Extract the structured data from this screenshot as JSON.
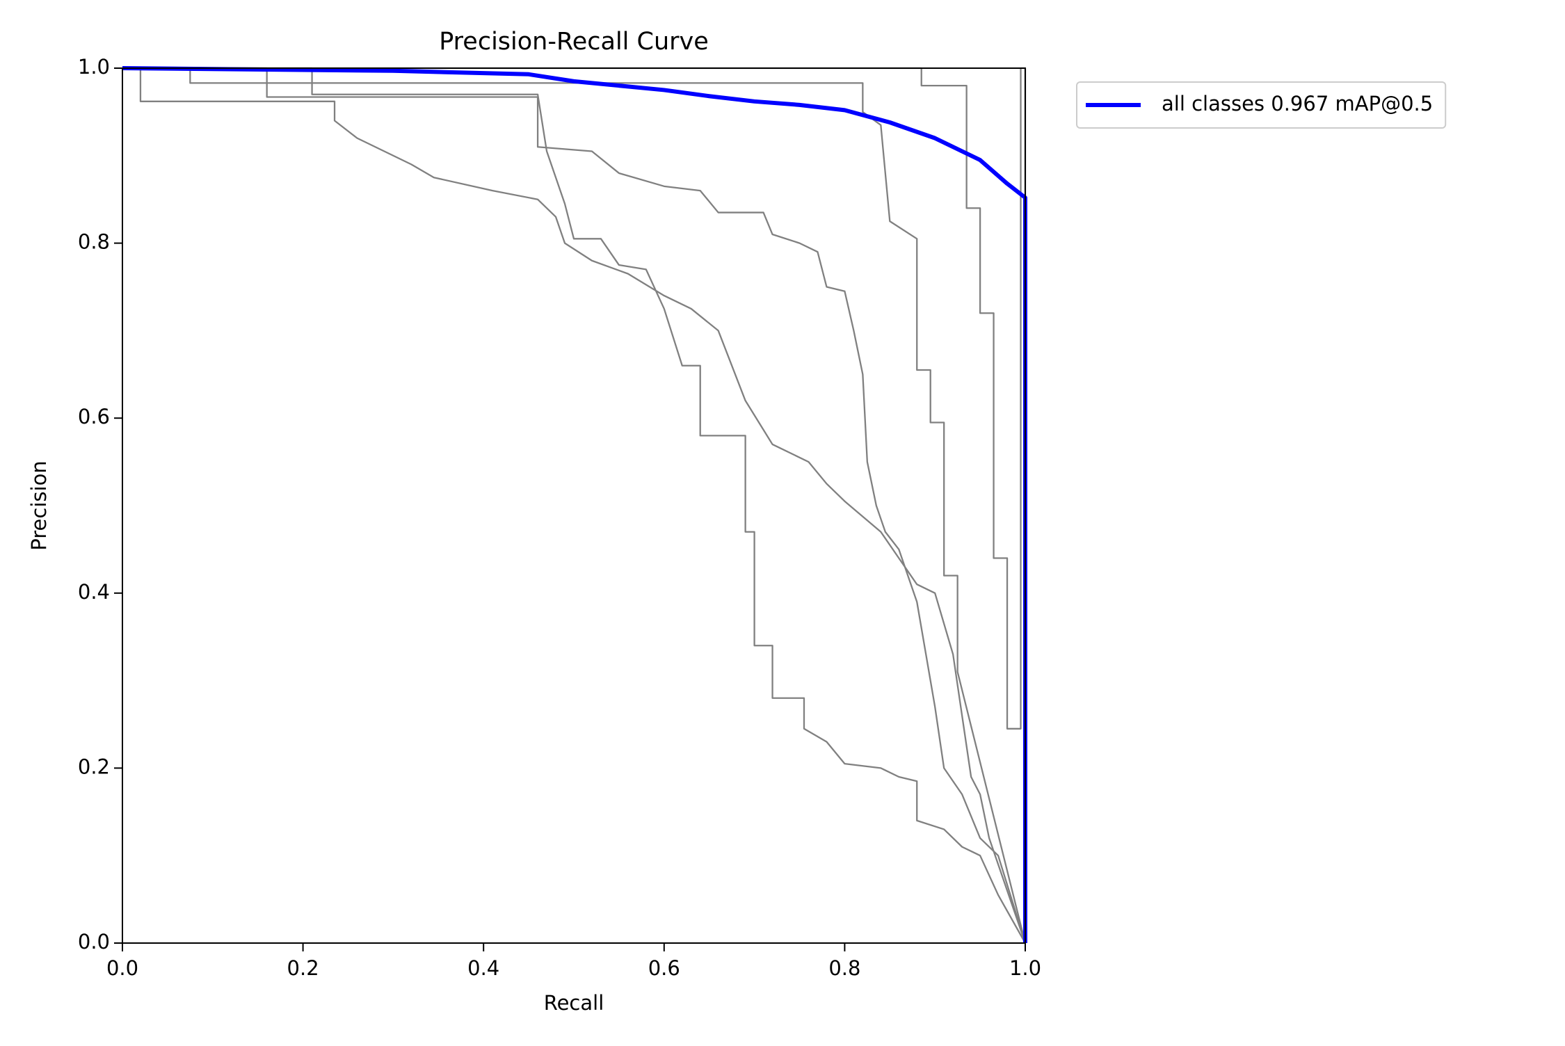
{
  "chart_data": {
    "type": "line",
    "title": "Precision-Recall Curve",
    "x_label": "Recall",
    "y_label": "Precision",
    "xlim": [
      0,
      1
    ],
    "ylim": [
      0,
      1
    ],
    "xticks": [
      {
        "value": 0,
        "label": "0.0"
      },
      {
        "value": 0.2,
        "label": "0.2"
      },
      {
        "value": 0.4,
        "label": "0.4"
      },
      {
        "value": 0.6,
        "label": "0.6"
      },
      {
        "value": 0.8,
        "label": "0.8"
      },
      {
        "value": 1,
        "label": "1.0"
      }
    ],
    "yticks": [
      {
        "value": 0,
        "label": "0.0"
      },
      {
        "value": 0.2,
        "label": "0.2"
      },
      {
        "value": 0.4,
        "label": "0.4"
      },
      {
        "value": 0.6,
        "label": "0.6"
      },
      {
        "value": 0.8,
        "label": "0.8"
      },
      {
        "value": 1,
        "label": "1.0"
      }
    ],
    "legend": "upper-right-outside",
    "series": [
      {
        "color": "#808080",
        "x": [
          0,
          0.02,
          0.02,
          0.235,
          0.235,
          0.26,
          0.29,
          0.32,
          0.345,
          0.41,
          0.46,
          0.48,
          0.49,
          0.52,
          0.56,
          0.6,
          0.63,
          0.66,
          0.69,
          0.72,
          0.76,
          0.78,
          0.8,
          0.84,
          0.86,
          0.88,
          0.9,
          0.92,
          0.93,
          0.94,
          0.95,
          0.96,
          0.97,
          0.98,
          1.0
        ],
        "values": [
          1,
          1,
          0.962,
          0.962,
          0.94,
          0.92,
          0.905,
          0.89,
          0.875,
          0.86,
          0.85,
          0.83,
          0.8,
          0.78,
          0.765,
          0.74,
          0.725,
          0.7,
          0.62,
          0.57,
          0.55,
          0.525,
          0.505,
          0.47,
          0.44,
          0.41,
          0.4,
          0.33,
          0.26,
          0.19,
          0.17,
          0.12,
          0.09,
          0.06,
          0
        ]
      },
      {
        "color": "#808080",
        "x": [
          0,
          0.075,
          0.075,
          0.82,
          0.82,
          0.84,
          0.85,
          0.88,
          0.88,
          0.895,
          0.895,
          0.91,
          0.91,
          0.925,
          0.925,
          1.0
        ],
        "values": [
          1,
          1,
          0.983,
          0.983,
          0.95,
          0.935,
          0.825,
          0.805,
          0.655,
          0.655,
          0.595,
          0.595,
          0.42,
          0.42,
          0.31,
          0
        ]
      },
      {
        "color": "#808080",
        "x": [
          0,
          0.16,
          0.16,
          0.46,
          0.46,
          0.52,
          0.55,
          0.6,
          0.64,
          0.66,
          0.71,
          0.72,
          0.75,
          0.77,
          0.78,
          0.8,
          0.81,
          0.82,
          0.825,
          0.835,
          0.845,
          0.86,
          0.87,
          0.88,
          0.89,
          0.9,
          0.91,
          0.93,
          0.95,
          0.97,
          1.0
        ],
        "values": [
          1,
          1,
          0.967,
          0.967,
          0.91,
          0.905,
          0.88,
          0.865,
          0.86,
          0.835,
          0.835,
          0.81,
          0.8,
          0.79,
          0.75,
          0.745,
          0.7,
          0.65,
          0.55,
          0.5,
          0.47,
          0.45,
          0.42,
          0.39,
          0.33,
          0.27,
          0.2,
          0.17,
          0.12,
          0.1,
          0
        ]
      },
      {
        "color": "#808080",
        "x": [
          0,
          0.21,
          0.21,
          0.46,
          0.47,
          0.49,
          0.5,
          0.53,
          0.55,
          0.58,
          0.6,
          0.62,
          0.64,
          0.64,
          0.69,
          0.69,
          0.7,
          0.7,
          0.72,
          0.72,
          0.755,
          0.755,
          0.78,
          0.8,
          0.84,
          0.86,
          0.88,
          0.88,
          0.91,
          0.93,
          0.95,
          0.97,
          1.0
        ],
        "values": [
          1,
          1,
          0.97,
          0.97,
          0.905,
          0.845,
          0.805,
          0.805,
          0.775,
          0.77,
          0.725,
          0.66,
          0.66,
          0.58,
          0.58,
          0.47,
          0.47,
          0.34,
          0.34,
          0.28,
          0.28,
          0.245,
          0.23,
          0.205,
          0.2,
          0.19,
          0.185,
          0.14,
          0.13,
          0.11,
          0.1,
          0.055,
          0
        ]
      },
      {
        "color": "#808080",
        "x": [
          0,
          0.885,
          0.885,
          0.935,
          0.935,
          0.95,
          0.95,
          0.965,
          0.965,
          0.98,
          0.98,
          0.995,
          0.995,
          1.0,
          1.0
        ],
        "values": [
          1,
          1,
          0.98,
          0.98,
          0.84,
          0.84,
          0.72,
          0.72,
          0.44,
          0.44,
          0.245,
          0.245,
          1,
          1,
          0
        ]
      },
      {
        "name": "all classes 0.967 mAP@0.5",
        "color": "#0000ff",
        "x": [
          0,
          0.3,
          0.45,
          0.5,
          0.6,
          0.65,
          0.7,
          0.75,
          0.8,
          0.85,
          0.9,
          0.95,
          0.98,
          1.0,
          1.0
        ],
        "values": [
          1,
          0.997,
          0.993,
          0.985,
          0.975,
          0.968,
          0.962,
          0.958,
          0.952,
          0.938,
          0.92,
          0.895,
          0.868,
          0.852,
          0
        ]
      }
    ]
  }
}
